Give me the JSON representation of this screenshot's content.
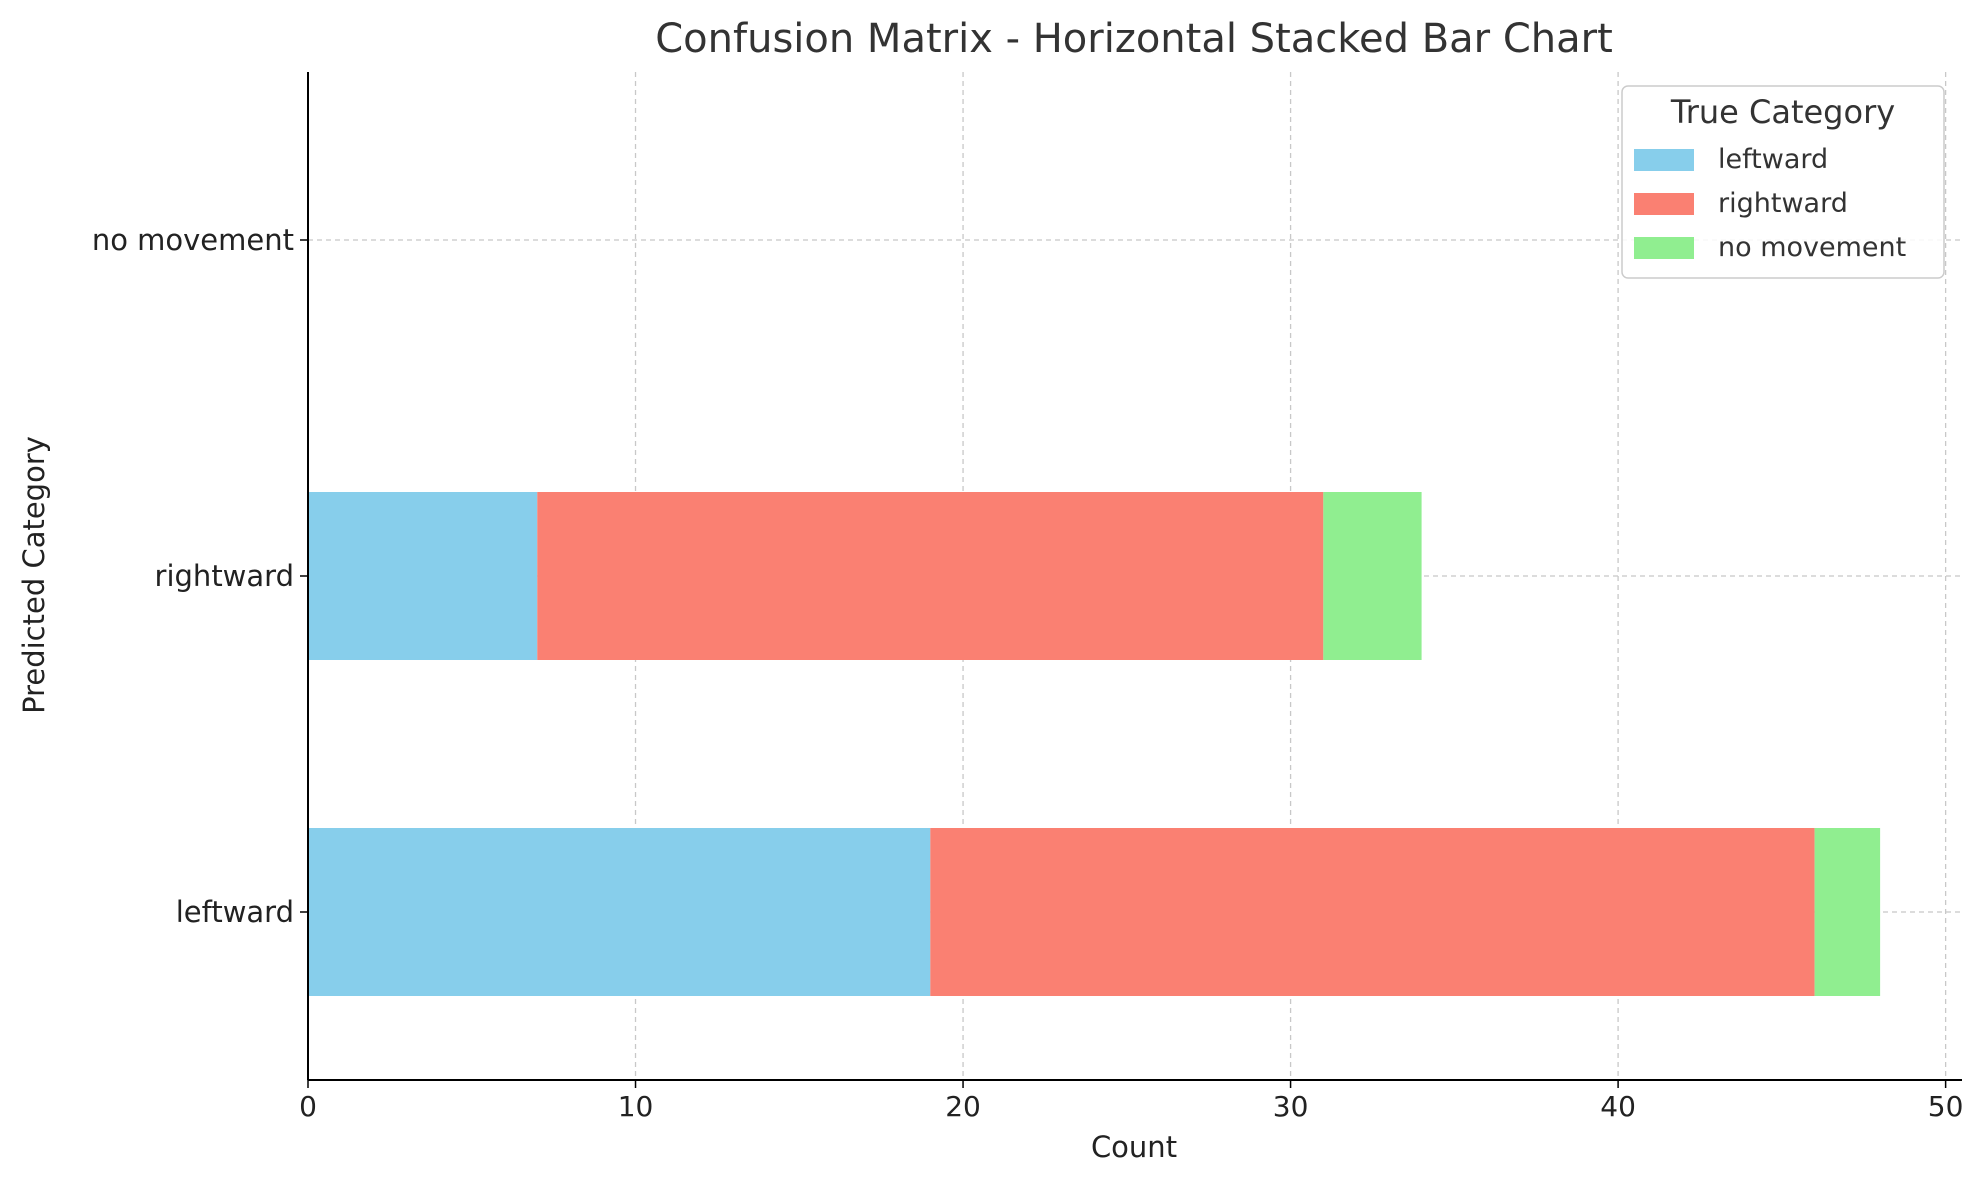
{
  "chart_data": {
    "type": "bar",
    "orientation": "horizontal",
    "stacked": true,
    "title": "Confusion Matrix - Horizontal Stacked Bar Chart",
    "xlabel": "Count",
    "ylabel": "Predicted Category",
    "xlim": [
      0,
      50.5
    ],
    "xticks": [
      0,
      10,
      20,
      30,
      40,
      50
    ],
    "categories": [
      "leftward",
      "rightward",
      "no movement"
    ],
    "series": [
      {
        "name": "leftward",
        "color": "#87CEEB",
        "values": [
          19,
          7,
          0
        ]
      },
      {
        "name": "rightward",
        "color": "#FA8072",
        "values": [
          27,
          24,
          0
        ]
      },
      {
        "name": "no movement",
        "color": "#90EE90",
        "values": [
          2,
          3,
          0
        ]
      }
    ],
    "legend": {
      "title": "True Category",
      "position": "top-right"
    },
    "grid": true
  }
}
